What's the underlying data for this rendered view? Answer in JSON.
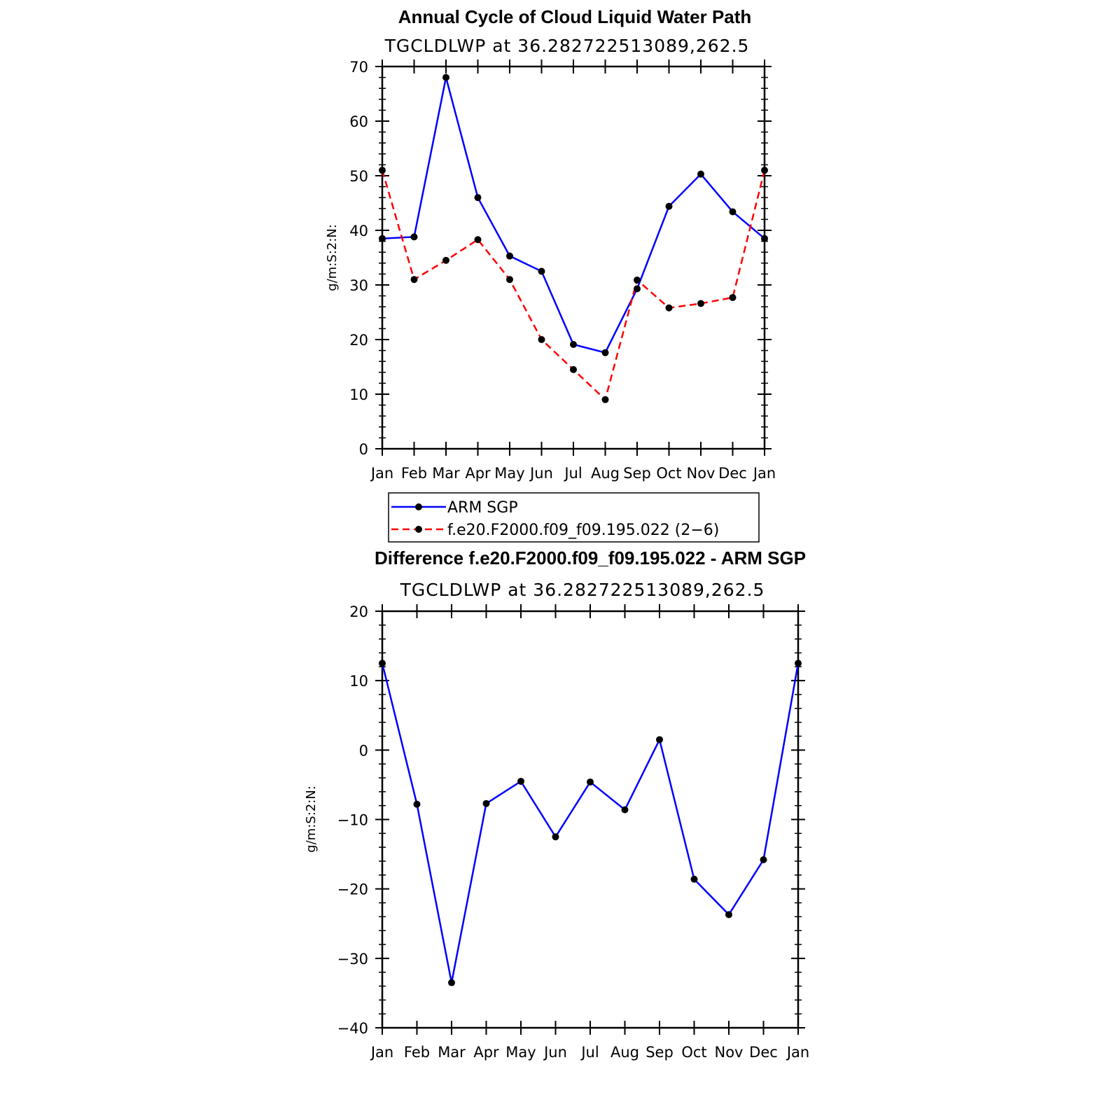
{
  "chart_data": [
    {
      "type": "line",
      "title": "Annual Cycle of Cloud Liquid Water Path",
      "subtitle": "TGCLDLWP  at  36.282722513089,262.5",
      "xlabel": "",
      "ylabel": "g/m:S:2:N:",
      "categories": [
        "Jan",
        "Feb",
        "Mar",
        "Apr",
        "May",
        "Jun",
        "Jul",
        "Aug",
        "Sep",
        "Oct",
        "Nov",
        "Dec",
        "Jan"
      ],
      "ylim": [
        0,
        70
      ],
      "yticks": [
        "0",
        "10",
        "20",
        "30",
        "40",
        "50",
        "60",
        "70"
      ],
      "series": [
        {
          "name": "ARM  SGP",
          "color": "#0000ff",
          "dash": "solid",
          "values": [
            38.5,
            38.8,
            68.0,
            46.0,
            35.3,
            32.5,
            19.1,
            17.6,
            29.3,
            44.4,
            50.3,
            43.4,
            38.5
          ]
        },
        {
          "name": "f.e20.F2000.f09_f09.195.022 (2−6)",
          "color": "#ff0000",
          "dash": "dashed",
          "values": [
            51.0,
            31.0,
            34.5,
            38.3,
            31.0,
            20.0,
            14.5,
            9.0,
            30.9,
            25.8,
            26.6,
            27.7,
            51.0
          ]
        }
      ],
      "legend_position": "below"
    },
    {
      "type": "line",
      "title": "Difference f.e20.F2000.f09_f09.195.022 - ARM SGP",
      "subtitle": "TGCLDLWP  at  36.282722513089,262.5",
      "xlabel": "",
      "ylabel": "g/m:S:2:N:",
      "categories": [
        "Jan",
        "Feb",
        "Mar",
        "Apr",
        "May",
        "Jun",
        "Jul",
        "Aug",
        "Sep",
        "Oct",
        "Nov",
        "Dec",
        "Jan"
      ],
      "ylim": [
        -40,
        20
      ],
      "yticks": [
        "−40",
        "−30",
        "−20",
        "−10",
        "0",
        "10",
        "20"
      ],
      "series": [
        {
          "name": "Difference",
          "color": "#0000ff",
          "dash": "solid",
          "values": [
            12.5,
            -7.8,
            -33.5,
            -7.7,
            -4.5,
            -12.5,
            -4.6,
            -8.6,
            1.5,
            -18.6,
            -23.7,
            -15.8,
            12.5
          ]
        }
      ]
    }
  ]
}
